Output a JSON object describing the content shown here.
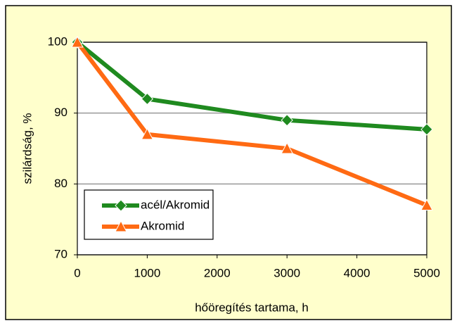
{
  "chart_data": {
    "type": "line",
    "xlabel": "hőöregítés tartama, h",
    "ylabel": "szilárdság, %",
    "x": [
      0,
      1000,
      3000,
      5000
    ],
    "series": [
      {
        "name": "acél/Akromid",
        "color": "#1f8a1f",
        "marker": "diamond",
        "values": [
          100,
          92,
          89,
          87.7
        ]
      },
      {
        "name": "Akromid",
        "color": "#ff6a13",
        "marker": "triangle",
        "values": [
          100,
          87,
          85,
          77
        ]
      }
    ],
    "xlim": [
      0,
      5000
    ],
    "xticks": [
      0,
      1000,
      2000,
      3000,
      4000,
      5000
    ],
    "ylim": [
      70,
      100
    ],
    "yticks": [
      70,
      80,
      90,
      100
    ],
    "grid": true,
    "legend": "lower left"
  }
}
